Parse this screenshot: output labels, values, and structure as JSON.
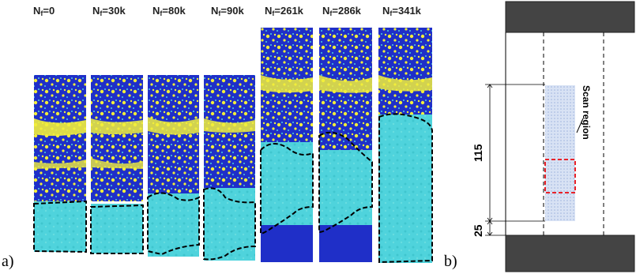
{
  "panel_a": {
    "label": "a)",
    "frames": [
      {
        "prefix": "N",
        "sub": "f",
        "suffix": "=0"
      },
      {
        "prefix": "N",
        "sub": "f",
        "suffix": "=30k"
      },
      {
        "prefix": "N",
        "sub": "f",
        "suffix": "=80k"
      },
      {
        "prefix": "N",
        "sub": "f",
        "suffix": "=90k"
      },
      {
        "prefix": "N",
        "sub": "f",
        "suffix": "=261k"
      },
      {
        "prefix": "N",
        "sub": "f",
        "suffix": "=286k"
      },
      {
        "prefix": "N",
        "sub": "f",
        "suffix": "=341k"
      }
    ]
  },
  "panel_b": {
    "label": "b)",
    "scan_label": "Scan region",
    "dim_top": "115",
    "dim_bottom": "25"
  },
  "colors": {
    "map_blue": "#1f2fc8",
    "map_yellow": "#f2ee3a",
    "map_cyan": "#4fd3dc",
    "grip": "#444444",
    "roi_red": "#e8232a",
    "scan_fill": "#c6d3ee"
  }
}
